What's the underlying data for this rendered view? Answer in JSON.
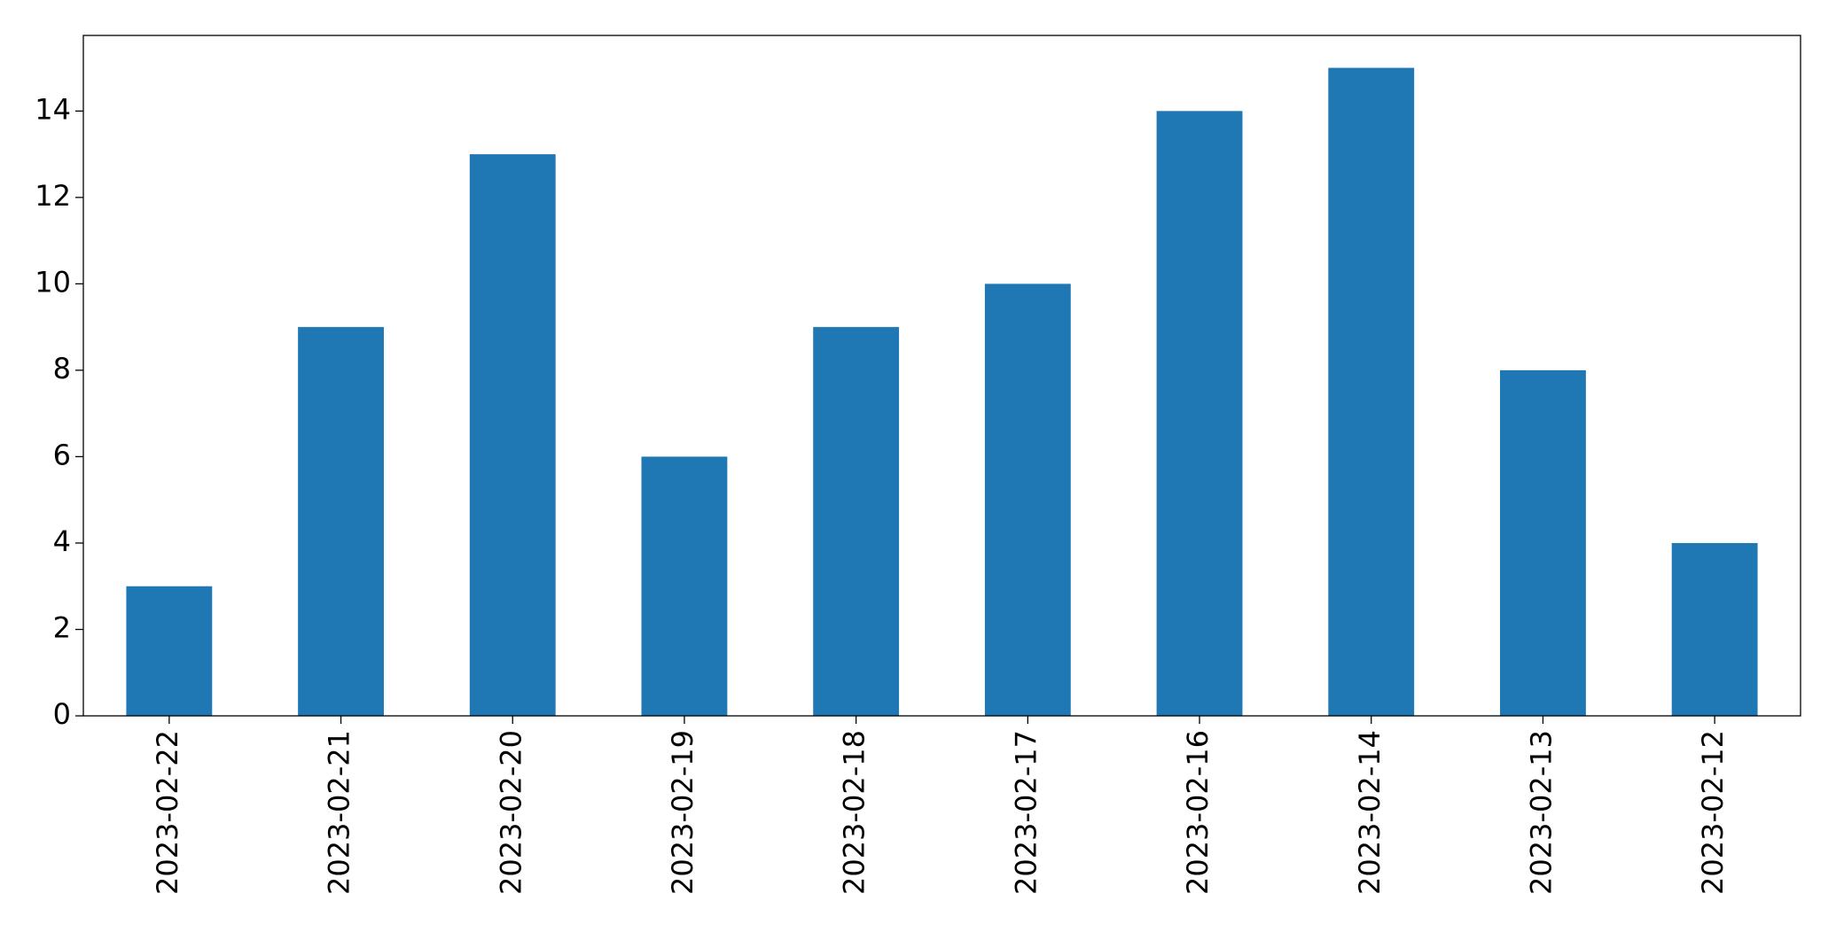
{
  "chart_data": {
    "type": "bar",
    "categories": [
      "2023-02-22",
      "2023-02-21",
      "2023-02-20",
      "2023-02-19",
      "2023-02-18",
      "2023-02-17",
      "2023-02-16",
      "2023-02-14",
      "2023-02-13",
      "2023-02-12"
    ],
    "values": [
      3,
      9,
      13,
      6,
      9,
      10,
      14,
      15,
      8,
      4
    ],
    "color": "#1f77b4",
    "ylim": [
      0,
      15.75
    ],
    "yticks": [
      0,
      2,
      4,
      6,
      8,
      10,
      12,
      14
    ],
    "grid": false
  }
}
